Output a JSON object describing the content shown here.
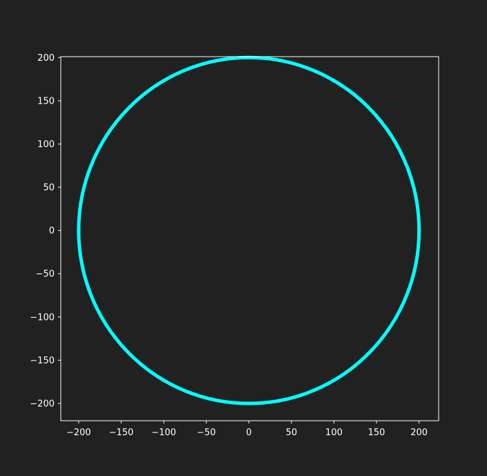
{
  "colors": {
    "background": "#212121",
    "axes_face": "#212121",
    "axes_edge": "#ffffff",
    "text": "#ffffff",
    "series": "#00ffff"
  },
  "chart_data": {
    "type": "scatter",
    "title": "",
    "xlabel": "",
    "ylabel": "",
    "xlim": [
      -221,
      223
    ],
    "ylim": [
      -220,
      201
    ],
    "grid": false,
    "aspect": "equal",
    "xticks": [
      -200,
      -150,
      -100,
      -50,
      0,
      50,
      100,
      150,
      200
    ],
    "yticks": [
      -200,
      -150,
      -100,
      -50,
      0,
      50,
      100,
      150,
      200
    ],
    "xtick_labels": [
      "−200",
      "−150",
      "−100",
      "−50",
      "0",
      "50",
      "100",
      "150",
      "200"
    ],
    "ytick_labels": [
      "−200",
      "−150",
      "−100",
      "−50",
      "0",
      "50",
      "100",
      "150",
      "200"
    ],
    "series": [
      {
        "shape": "circle",
        "center": [
          0,
          0
        ],
        "radius": 200,
        "color": "#00ffff",
        "x": [
          200,
          187.9,
          153.2,
          100,
          34.7,
          -34.7,
          -100,
          -153.2,
          -187.9,
          -200,
          -187.9,
          -153.2,
          -100,
          -34.7,
          34.7,
          100,
          153.2,
          187.9
        ],
        "y": [
          0,
          68.4,
          128.6,
          173.2,
          197,
          197,
          173.2,
          128.6,
          68.4,
          0,
          -68.4,
          -128.6,
          -173.2,
          -197,
          -197,
          -173.2,
          -128.6,
          -68.4
        ]
      }
    ]
  }
}
